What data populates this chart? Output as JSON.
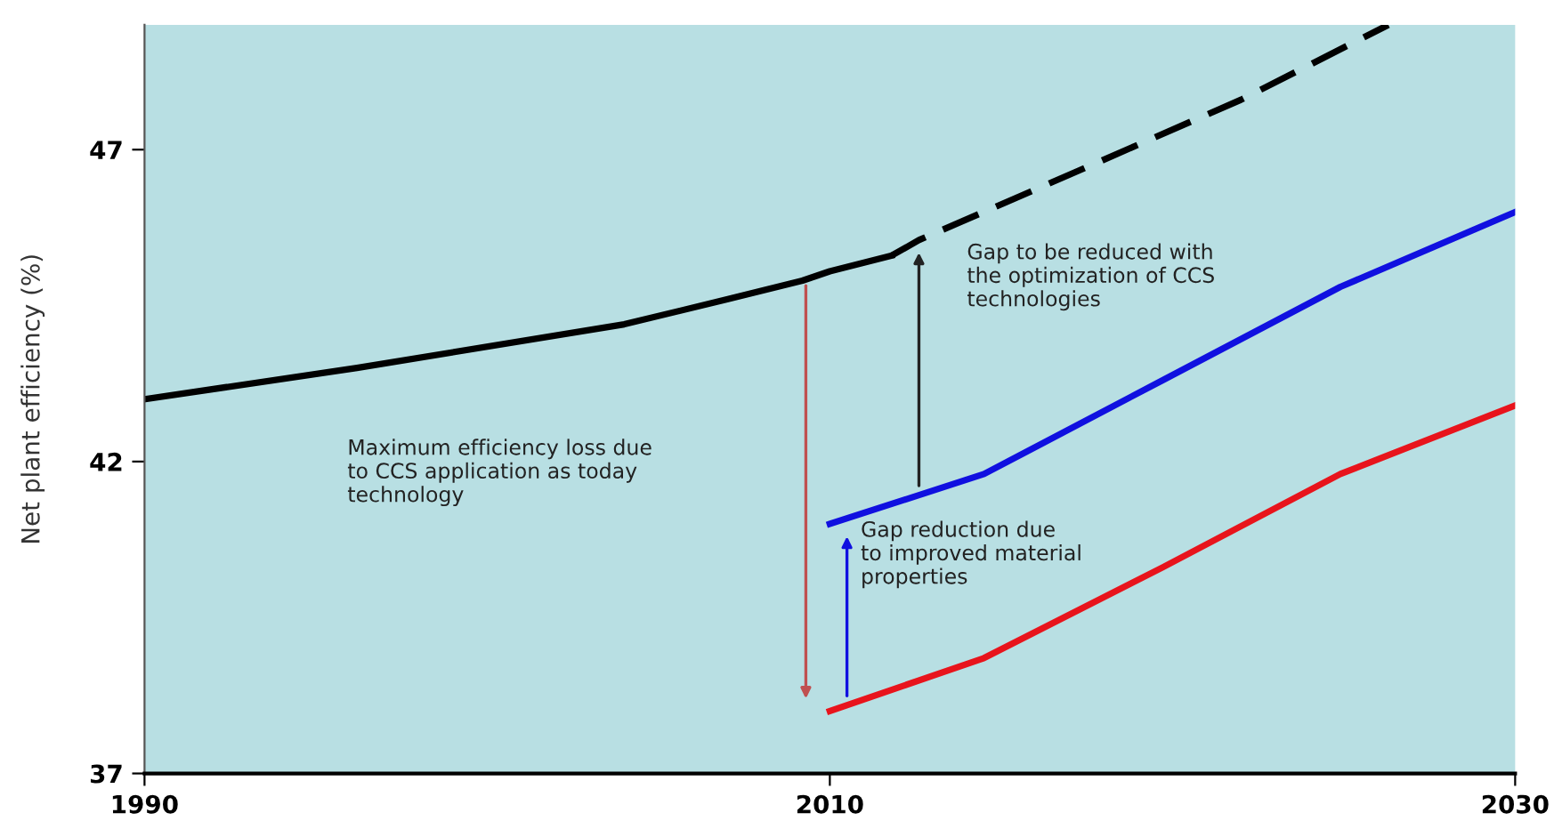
{
  "chart_data": {
    "type": "line",
    "ylabel": "Net plant efficiency (%)",
    "series": [
      {
        "color": "#000000",
        "line_style": "solid",
        "x": [
          1990,
          1996.2,
          2004.0,
          2007.0,
          2009.2,
          2010.0,
          2011.8
        ],
        "values": [
          43.0,
          43.5,
          44.2,
          44.6,
          44.9,
          45.05,
          45.3
        ]
      },
      {
        "color": "#000000",
        "line_style": "dashed",
        "x": [
          2011.8,
          2012.6,
          2017.0,
          2022.0,
          2026.3
        ],
        "values": [
          45.3,
          45.55,
          46.6,
          47.8,
          49.0
        ]
      },
      {
        "color": "#1010e0",
        "line_style": "solid",
        "x": [
          2010,
          2014.5,
          2019.7,
          2024.9,
          2030
        ],
        "values": [
          41.0,
          41.8,
          43.3,
          44.8,
          46.0
        ]
      },
      {
        "color": "#e8141c",
        "line_style": "solid",
        "x": [
          2010,
          2014.5,
          2019.7,
          2024.9,
          2030
        ],
        "values": [
          38.0,
          38.85,
          40.3,
          41.8,
          42.9
        ]
      }
    ],
    "annotations": [
      "Maximum efficiency loss due\nto CCS application as today\ntechnology",
      {
        "text": "Gap to be reduced with\nthe optimization of CCS\ntechnologies",
        "x": 2012.6,
        "y": 45.55
      },
      {
        "text": "Gap reduction due\nto improved material\nproperties",
        "x": 2010,
        "y": 41.0
      }
    ],
    "xlim": [
      1990,
      2030
    ],
    "xticks": [
      1990,
      2010,
      2030
    ],
    "ylim": [
      37,
      49
    ],
    "yticks": [
      37,
      42,
      47
    ],
    "grid": false,
    "marker": "none"
  }
}
